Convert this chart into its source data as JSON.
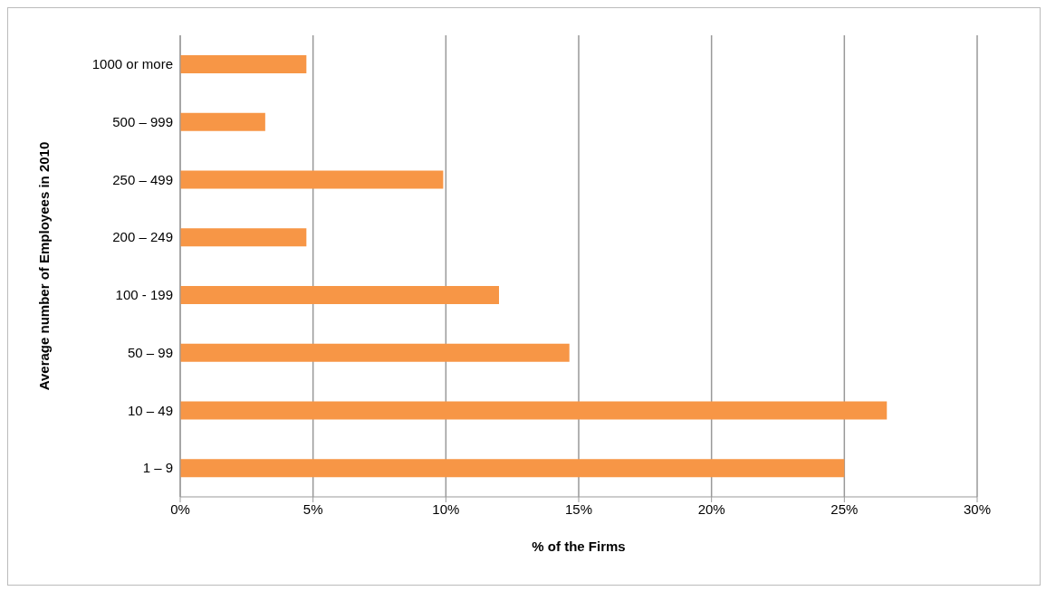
{
  "chart_data": {
    "type": "bar",
    "orientation": "horizontal",
    "xlabel": "% of the Firms",
    "ylabel": "Average number of Employees in 2010",
    "categories": [
      "1000 or more",
      "500 – 999",
      "250 – 499",
      "200 – 249",
      "100 - 199",
      "50 – 99",
      "10 – 49",
      "1 – 9"
    ],
    "values": [
      4.75,
      3.2,
      9.9,
      4.75,
      12,
      14.65,
      26.6,
      25
    ],
    "color": "#f79646",
    "xlim": [
      0,
      30
    ],
    "xticks": [
      {
        "value": 0,
        "label": "0%"
      },
      {
        "value": 5,
        "label": "5%"
      },
      {
        "value": 10,
        "label": "10%"
      },
      {
        "value": 15,
        "label": "15%"
      },
      {
        "value": 20,
        "label": "20%"
      },
      {
        "value": 25,
        "label": "25%"
      },
      {
        "value": 30,
        "label": "30%"
      }
    ],
    "grid": "x"
  }
}
